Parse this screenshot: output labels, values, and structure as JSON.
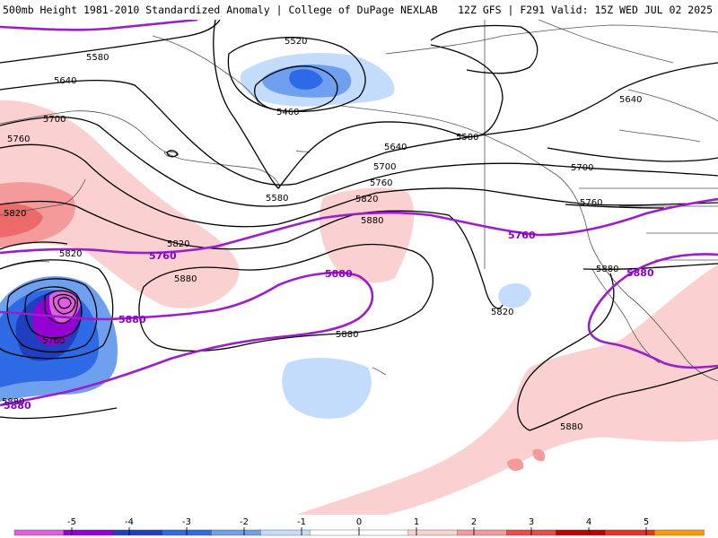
{
  "header": {
    "title_left": "500mb Height 1981-2010 Standardized Anomaly | College of DuPage NEXLAB",
    "title_right": "12Z GFS | F291 Valid: 15Z WED JUL 02 2025"
  },
  "colors": {
    "contour": "#000000",
    "purple_contour": "#9b1fc8",
    "coast": "#555555"
  },
  "contour_labels": [
    "5520",
    "5580",
    "5640",
    "5700",
    "5460",
    "5580",
    "5640",
    "5700",
    "5760",
    "5820",
    "5880",
    "5760",
    "5820",
    "5880",
    "5640",
    "5700",
    "5760",
    "5820",
    "5880",
    "5760",
    "5820",
    "5820",
    "5880",
    "5880",
    "5880",
    "5580"
  ],
  "purple_labels": [
    "5760",
    "5880",
    "5880",
    "5760",
    "5880",
    "5880"
  ],
  "colorbar": {
    "colors": [
      "#e05ee0",
      "#9400d3",
      "#1f3fbf",
      "#2e6ae6",
      "#6fa0f0",
      "#c4dcfb",
      "#ffffff",
      "#ffffff",
      "#fbd0d0",
      "#f59a9a",
      "#e84a4a",
      "#c00000",
      "#e8331f",
      "#ff9900"
    ],
    "ticks": [
      "-5",
      "-4",
      "-3",
      "-2",
      "-1",
      "0",
      "1",
      "2",
      "3",
      "4",
      "5"
    ]
  }
}
